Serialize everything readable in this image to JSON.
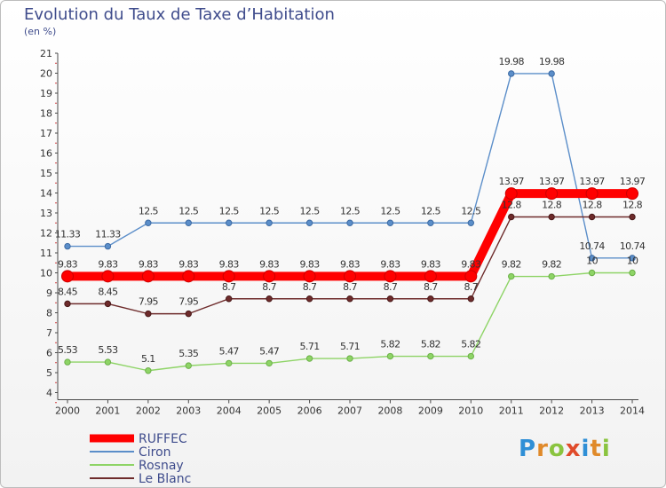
{
  "chart_data": {
    "type": "line",
    "title": "Evolution du Taux de Taxe d’Habitation",
    "subtitle": "(en %)",
    "x": [
      "2000",
      "2001",
      "2002",
      "2003",
      "2004",
      "2005",
      "2006",
      "2007",
      "2008",
      "2009",
      "2010",
      "2011",
      "2012",
      "2013",
      "2014"
    ],
    "ylim": [
      4,
      21
    ],
    "yticks": [
      "4",
      "5",
      "6",
      "7",
      "8",
      "9",
      "10",
      "11",
      "12",
      "13",
      "14",
      "15",
      "16",
      "17",
      "18",
      "19",
      "20",
      "21"
    ],
    "grid": false,
    "legend_position": "bottom-left",
    "series": [
      {
        "name": "RUFFEC",
        "color": "#ff0000",
        "values": [
          9.83,
          9.83,
          9.83,
          9.83,
          9.83,
          9.83,
          9.83,
          9.83,
          9.83,
          9.83,
          9.83,
          13.97,
          13.97,
          13.97,
          13.97
        ],
        "labels": [
          "9.83",
          "9.83",
          "9.83",
          "9.83",
          "9.83",
          "9.83",
          "9.83",
          "9.83",
          "9.83",
          "9.83",
          "9.83",
          "13.97",
          "13.97",
          "13.97",
          "13.97"
        ]
      },
      {
        "name": "Ciron",
        "color": "#5b8ec9",
        "values": [
          11.33,
          11.33,
          12.5,
          12.5,
          12.5,
          12.5,
          12.5,
          12.5,
          12.5,
          12.5,
          12.5,
          19.98,
          19.98,
          10.74,
          10.74
        ],
        "labels": [
          "11.33",
          "11.33",
          "12.5",
          "12.5",
          "12.5",
          "12.5",
          "12.5",
          "12.5",
          "12.5",
          "12.5",
          "12.5",
          "19.98",
          "19.98",
          "10.74",
          "10.74"
        ]
      },
      {
        "name": "Rosnay",
        "color": "#8ed466",
        "values": [
          5.53,
          5.53,
          5.1,
          5.35,
          5.47,
          5.47,
          5.71,
          5.71,
          5.82,
          5.82,
          5.82,
          9.82,
          9.82,
          10,
          10
        ],
        "labels": [
          "5.53",
          "5.53",
          "5.1",
          "5.35",
          "5.47",
          "5.47",
          "5.71",
          "5.71",
          "5.82",
          "5.82",
          "5.82",
          "9.82",
          "9.82",
          "10",
          "10"
        ]
      },
      {
        "name": "Le Blanc",
        "color": "#6e2b2b",
        "values": [
          8.45,
          8.45,
          7.95,
          7.95,
          8.7,
          8.7,
          8.7,
          8.7,
          8.7,
          8.7,
          8.7,
          12.8,
          12.8,
          12.8,
          12.8
        ],
        "labels": [
          "8.45",
          "8.45",
          "7.95",
          "7.95",
          "8.7",
          "8.7",
          "8.7",
          "8.7",
          "8.7",
          "8.7",
          "8.7",
          "12.8",
          "12.8",
          "12.8",
          "12.8"
        ]
      }
    ]
  },
  "brand": {
    "letters": [
      "P",
      "r",
      "o",
      "x",
      "i",
      "t",
      "i"
    ],
    "colors": [
      "#2f8fd6",
      "#e08a2a",
      "#8ac43f",
      "#e04b2a",
      "#2f8fd6",
      "#e08a2a",
      "#8ac43f"
    ]
  }
}
